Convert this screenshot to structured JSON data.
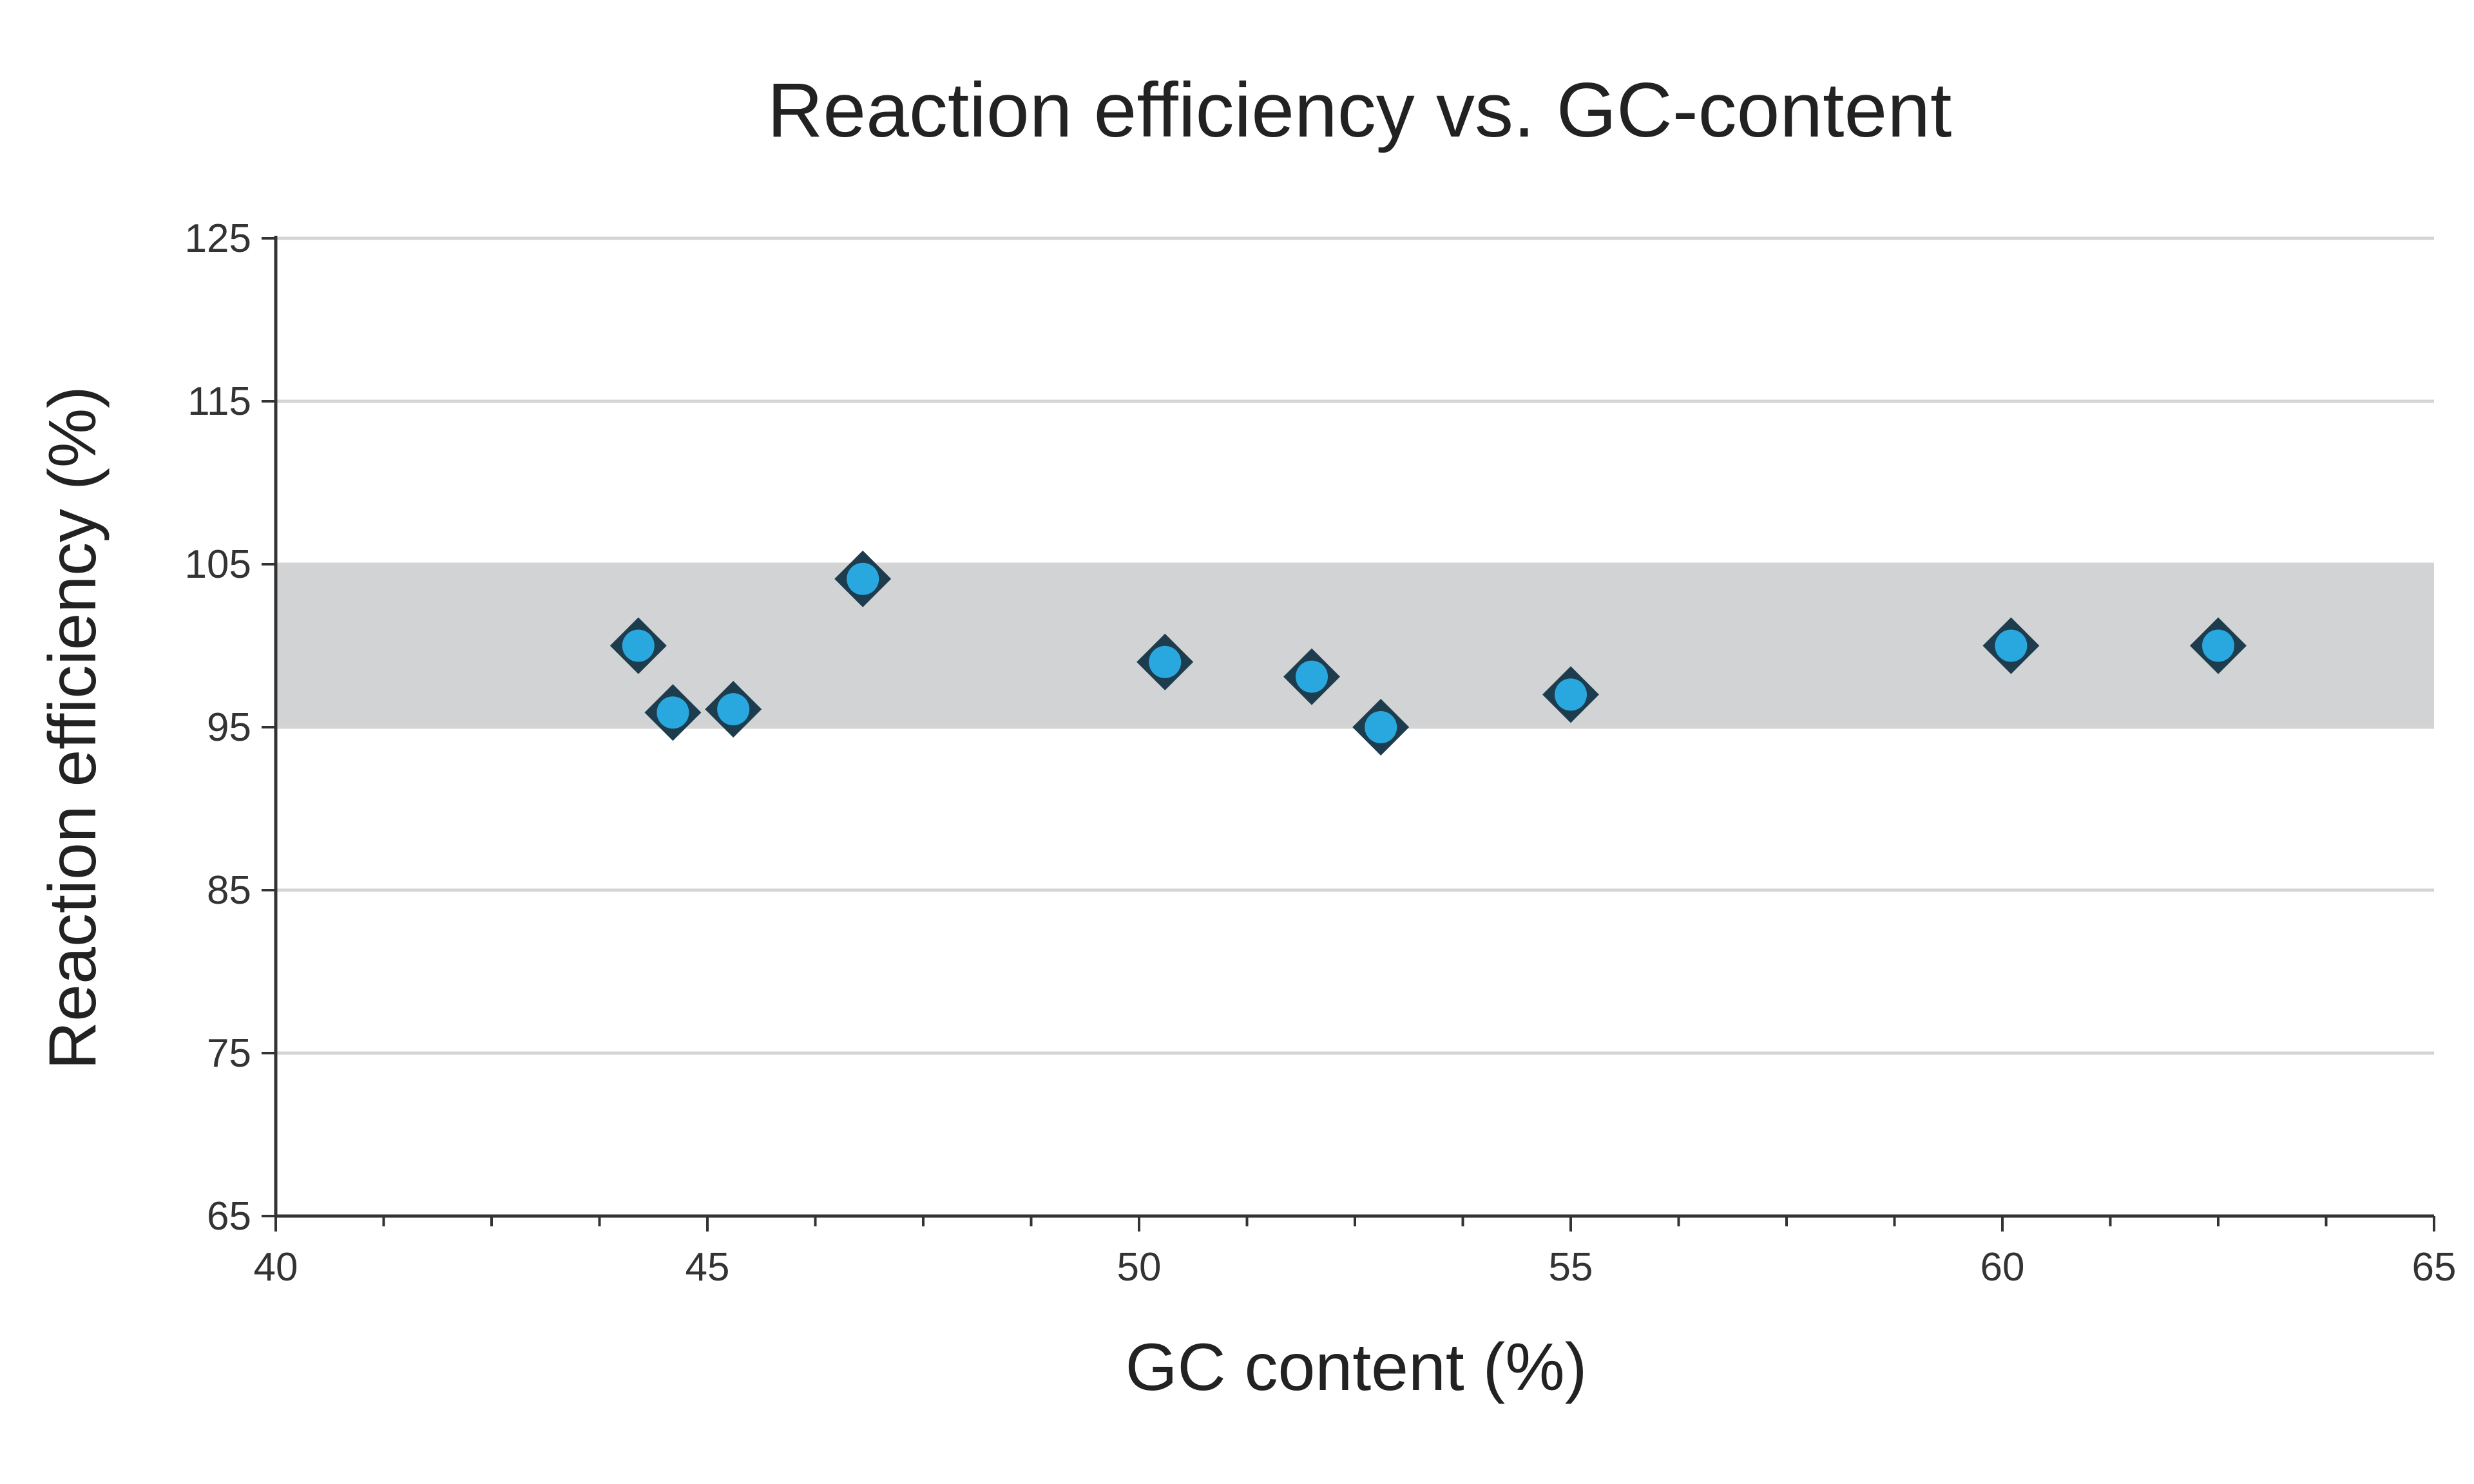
{
  "chart_data": {
    "type": "scatter",
    "title": "Reaction efficiency vs. GC-content",
    "xlabel": "GC content (%)",
    "ylabel": "Reaction efficiency (%)",
    "xlim": [
      40,
      65
    ],
    "ylim": [
      65,
      125
    ],
    "xticks": [
      40,
      45,
      50,
      55,
      60,
      65
    ],
    "yticks": [
      65,
      75,
      85,
      95,
      105,
      115,
      125
    ],
    "x_minor_step": 1.25,
    "grid": "horizontal",
    "legend": "none",
    "shaded_band": {
      "y_from": 95,
      "y_to": 105,
      "color": "#d1d3d4"
    },
    "marker": {
      "shape": "diamond",
      "fill": "#29a8e0",
      "stroke": "#1d3d4f"
    },
    "points": [
      {
        "x": 44.2,
        "y": 100.0
      },
      {
        "x": 44.6,
        "y": 95.9
      },
      {
        "x": 45.3,
        "y": 96.1
      },
      {
        "x": 46.8,
        "y": 104.1
      },
      {
        "x": 50.3,
        "y": 99.0
      },
      {
        "x": 52.0,
        "y": 98.1
      },
      {
        "x": 52.8,
        "y": 95.0
      },
      {
        "x": 55.0,
        "y": 97.0
      },
      {
        "x": 60.1,
        "y": 100.0
      },
      {
        "x": 62.5,
        "y": 100.0
      }
    ]
  },
  "colors": {
    "gridline": "#d4d4d4",
    "axis": "#333333",
    "text": "#222222"
  }
}
